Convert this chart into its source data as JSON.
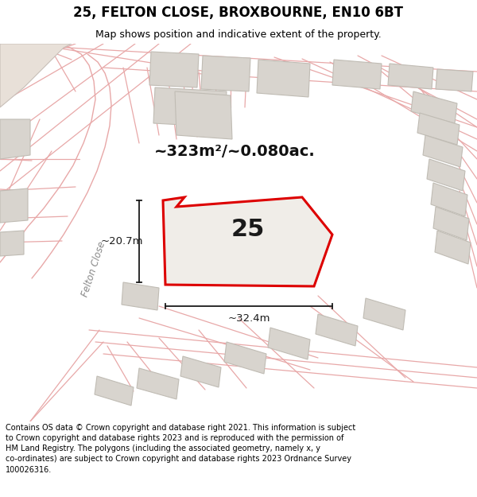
{
  "title": "25, FELTON CLOSE, BROXBOURNE, EN10 6BT",
  "subtitle": "Map shows position and indicative extent of the property.",
  "footer": "Contains OS data © Crown copyright and database right 2021. This information is subject to Crown copyright and database rights 2023 and is reproduced with the permission of HM Land Registry. The polygons (including the associated geometry, namely x, y co-ordinates) are subject to Crown copyright and database rights 2023 Ordnance Survey 100026316.",
  "area_label": "~323m²/~0.080ac.",
  "plot_number": "25",
  "dim_width": "~32.4m",
  "dim_height": "~20.7m",
  "road_label": "Felton Close",
  "bg_color": "#ffffff",
  "map_bg": "#ffffff",
  "plot_fill": "#f0ede8",
  "plot_edge_color": "#dd0000",
  "building_fill": "#d8d4ce",
  "building_edge": "#c0bcb4",
  "road_line_color": "#e8a8a8",
  "figsize": [
    6.0,
    6.25
  ],
  "dpi": 100,
  "title_fontsize": 12,
  "subtitle_fontsize": 9,
  "footer_fontsize": 7
}
